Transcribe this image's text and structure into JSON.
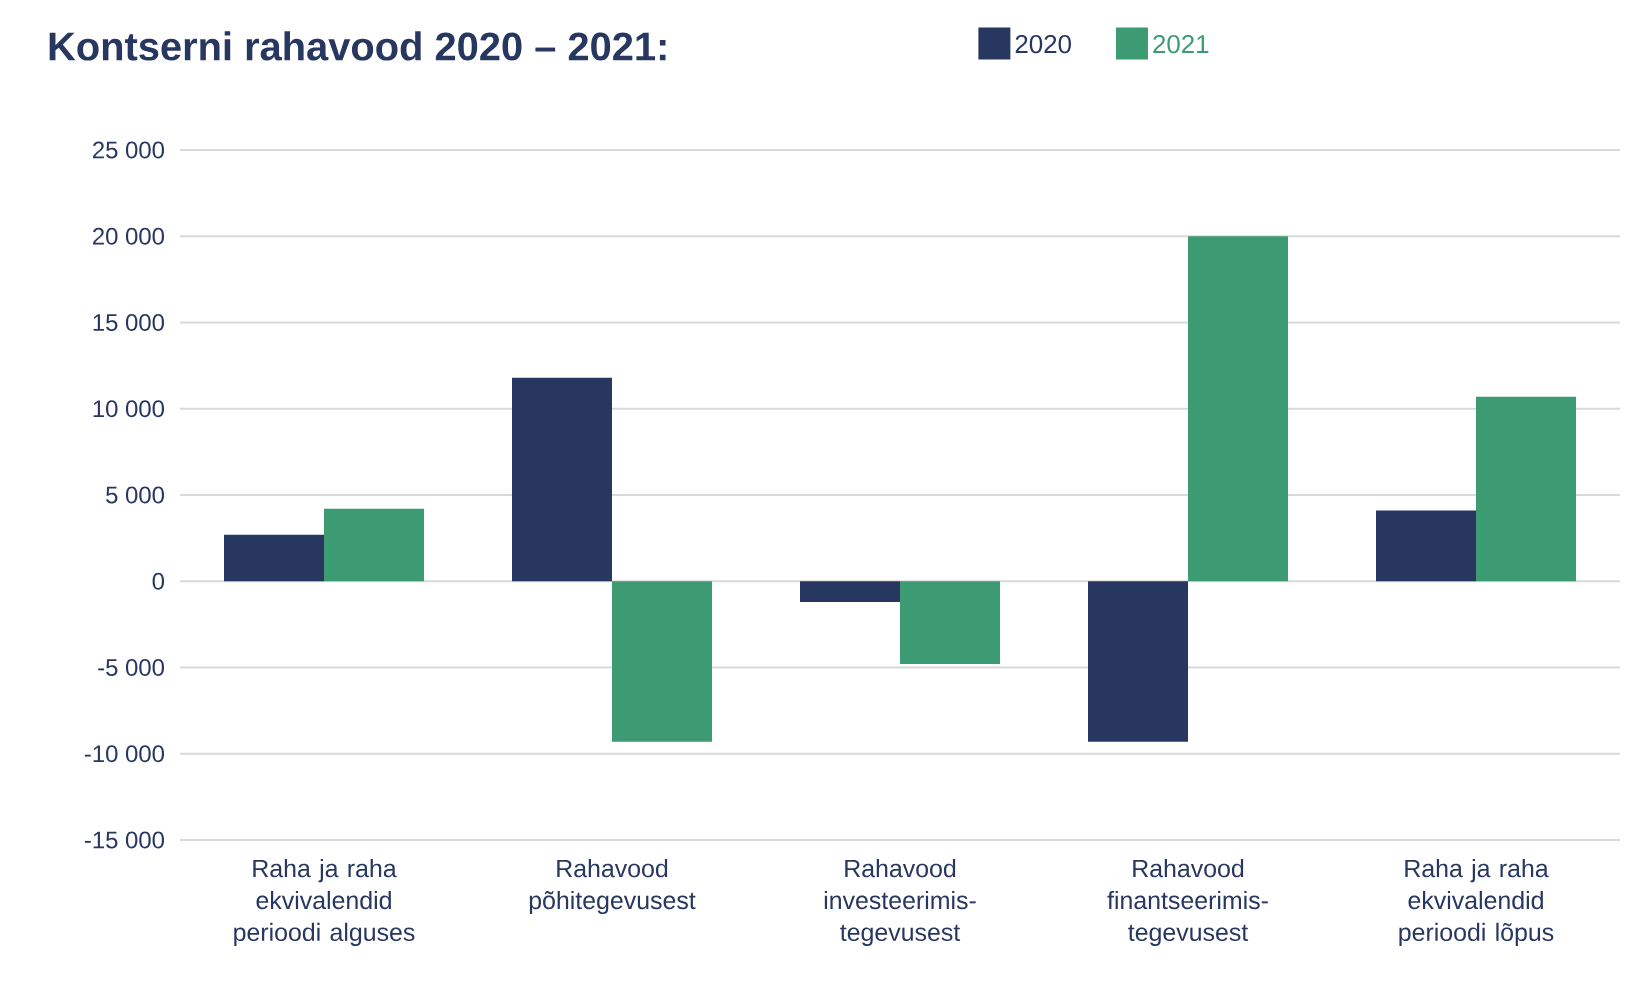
{
  "chart_data": {
    "type": "bar",
    "title": "Kontserni rahavood 2020 – 2021:",
    "categories": [
      "Raha ja raha ekvivalendid perioodi alguses",
      "Rahavood põhitegevusest",
      "Rahavood investeerimis-tegevusest",
      "Rahavood finantseerimis-tegevusest",
      "Raha ja raha ekvivalendid perioodi lõpus"
    ],
    "series": [
      {
        "name": "2020",
        "color": "#27375f",
        "values": [
          2700,
          11800,
          -1200,
          -9300,
          4100
        ]
      },
      {
        "name": "2021",
        "color": "#3c9b72",
        "values": [
          4200,
          -9300,
          -4800,
          20000,
          10700
        ]
      }
    ],
    "ylim": [
      -15000,
      25000
    ],
    "yticks": [
      {
        "value": -15000,
        "label": "-15 000"
      },
      {
        "value": -10000,
        "label": "-10 000"
      },
      {
        "value": -5000,
        "label": "-5 000"
      },
      {
        "value": 0,
        "label": "0"
      },
      {
        "value": 5000,
        "label": "5 000"
      },
      {
        "value": 10000,
        "label": "10 000"
      },
      {
        "value": 15000,
        "label": "15 000"
      },
      {
        "value": 20000,
        "label": "20 000"
      },
      {
        "value": 25000,
        "label": "25 000"
      }
    ],
    "grid": "y",
    "legend": "top"
  }
}
